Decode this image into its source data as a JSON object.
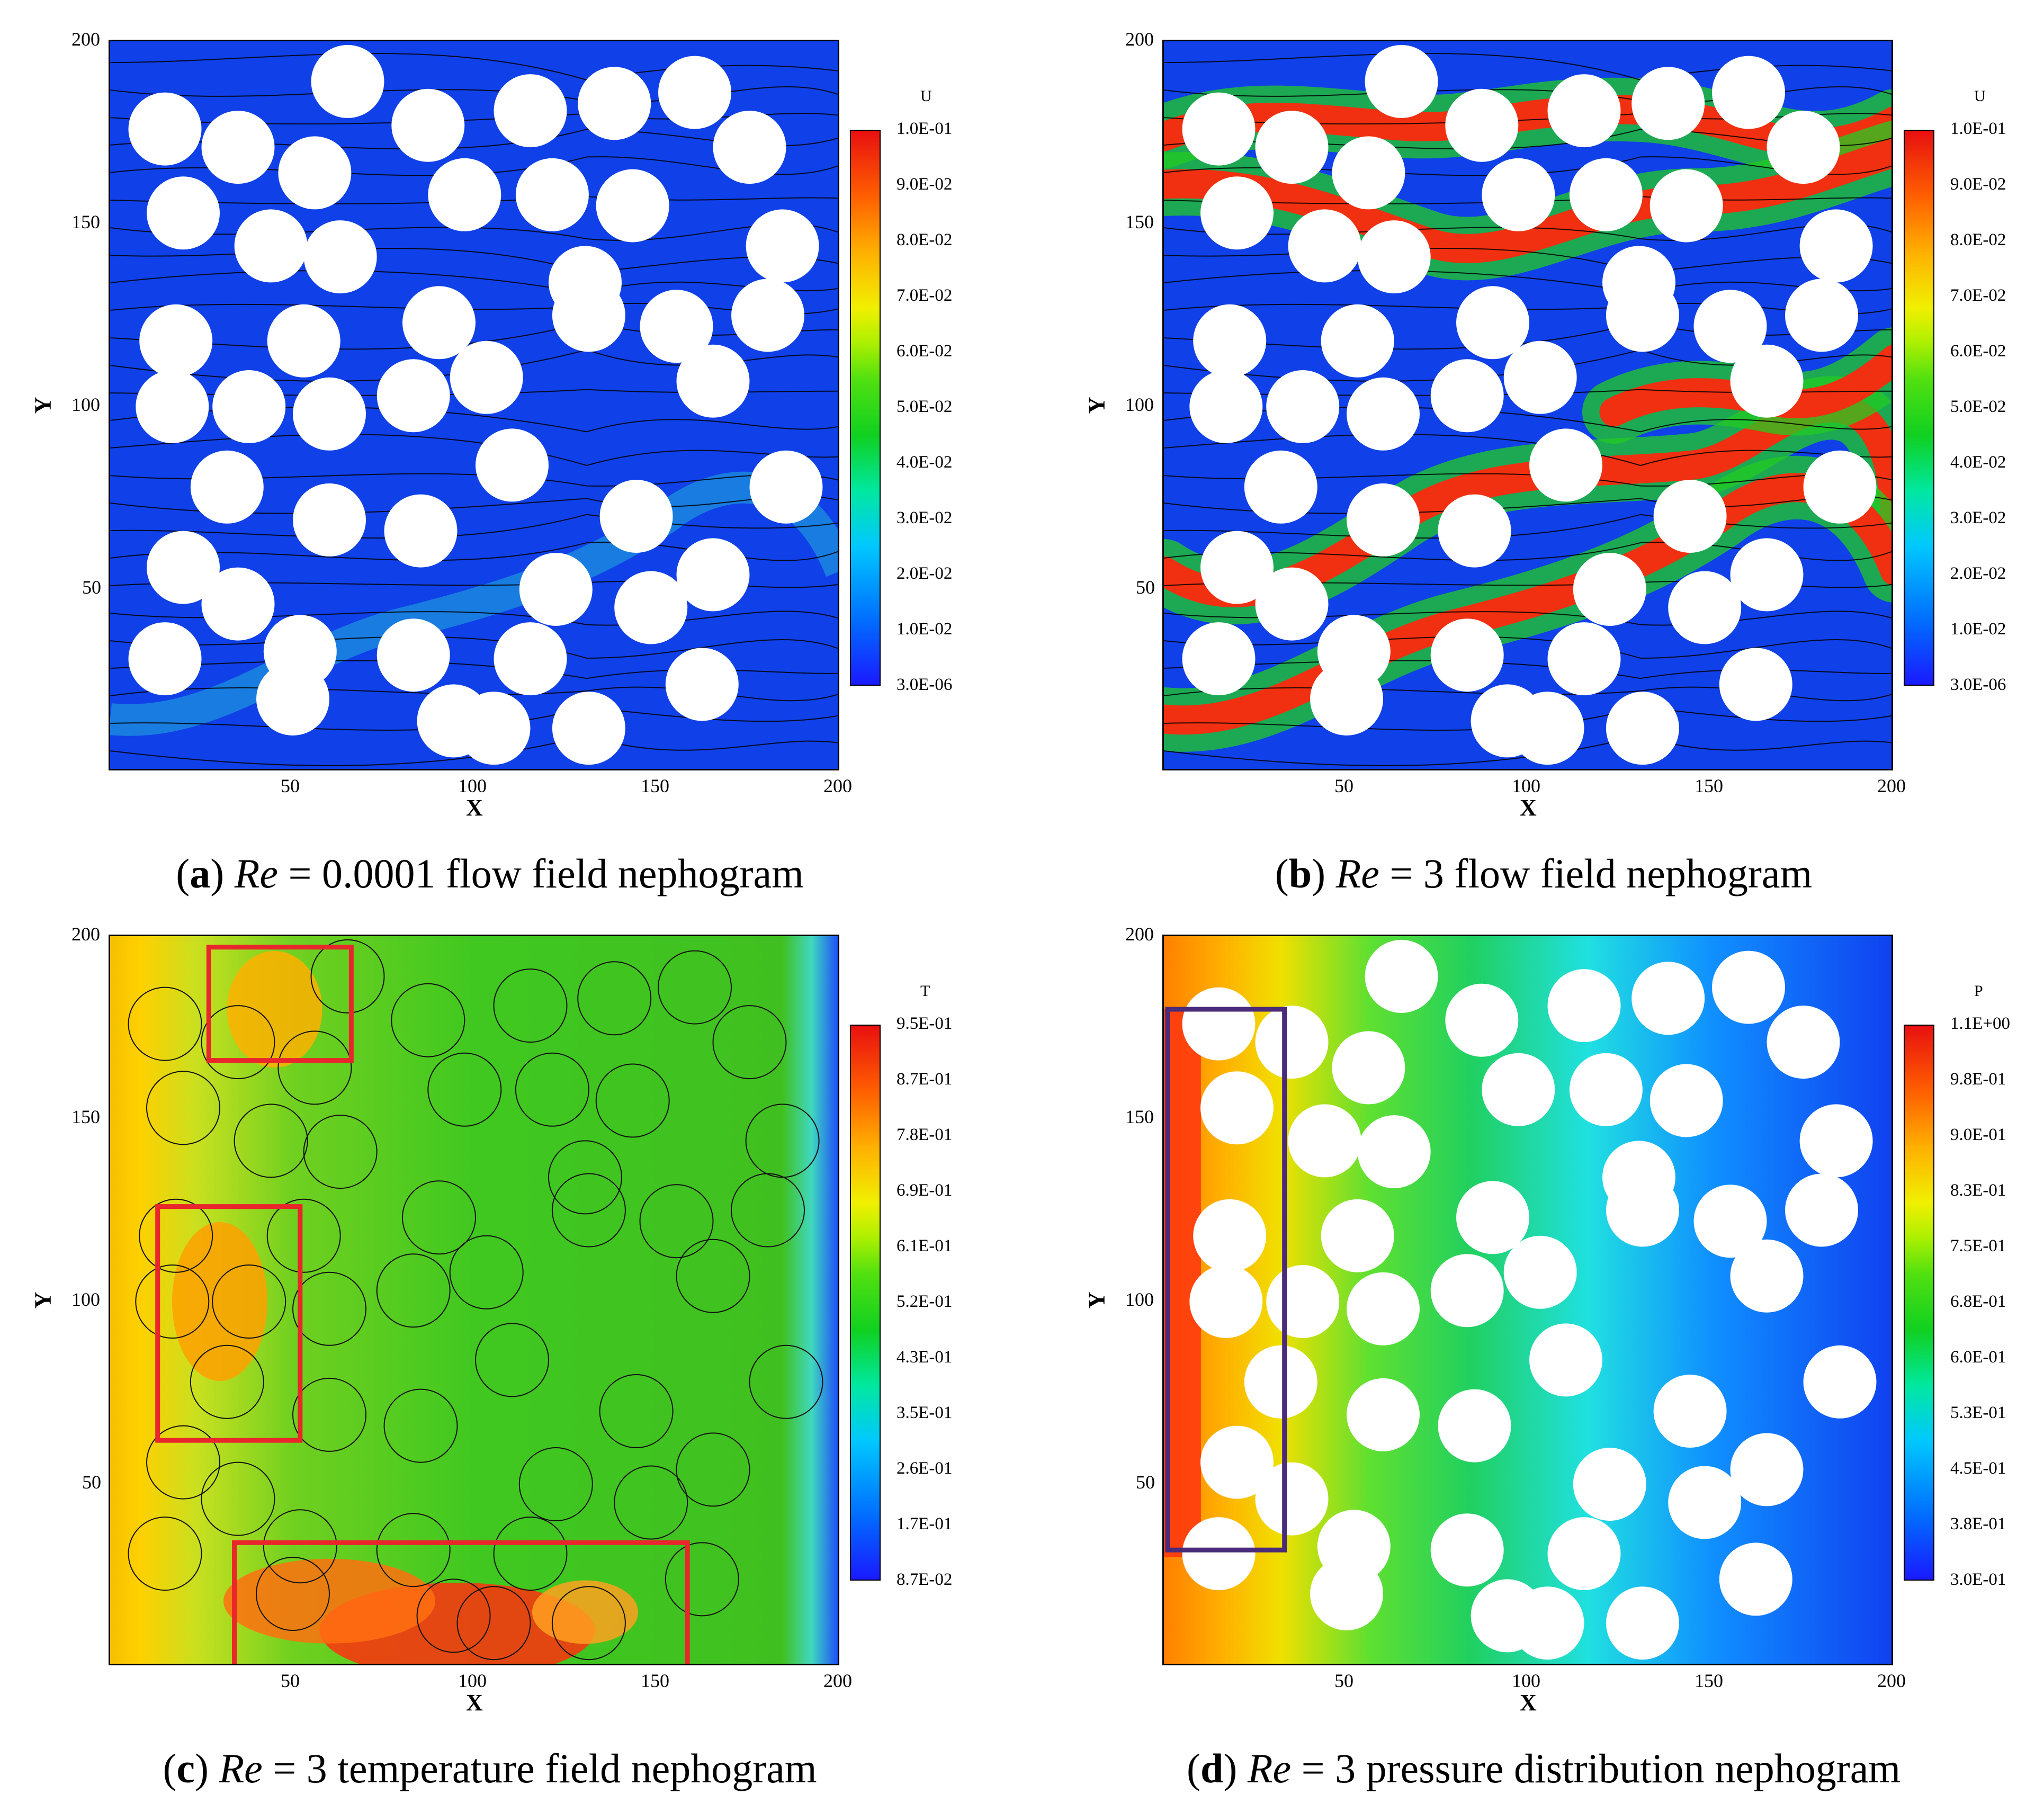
{
  "chart_data": [
    {
      "id": "a",
      "type": "heatmap",
      "field": "flow",
      "caption": {
        "letter": "a",
        "re_label": "Re",
        "re_value": "= 0.0001",
        "text": "flow field nephogram"
      },
      "xlabel": "X",
      "ylabel": "Y",
      "xlim": [
        0,
        200
      ],
      "ylim": [
        0,
        200
      ],
      "xticks": [
        50,
        100,
        150,
        200
      ],
      "yticks": [
        50,
        100,
        150,
        200
      ],
      "colorbar": {
        "title": "U",
        "labels": [
          "1.0E-01",
          "9.0E-02",
          "8.0E-02",
          "7.0E-02",
          "6.0E-02",
          "5.0E-02",
          "4.0E-02",
          "3.0E-02",
          "2.0E-02",
          "1.0E-02",
          "3.0E-06"
        ]
      },
      "obstacles": "white",
      "streamlines": true
    },
    {
      "id": "b",
      "type": "heatmap",
      "field": "flow",
      "caption": {
        "letter": "b",
        "re_label": "Re",
        "re_value": "= 3",
        "text": "flow field nephogram"
      },
      "xlabel": "X",
      "ylabel": "Y",
      "xlim": [
        0,
        200
      ],
      "ylim": [
        0,
        200
      ],
      "xticks": [
        50,
        100,
        150,
        200
      ],
      "yticks": [
        50,
        100,
        150,
        200
      ],
      "colorbar": {
        "title": "U",
        "labels": [
          "1.0E-01",
          "9.0E-02",
          "8.0E-02",
          "7.0E-02",
          "6.0E-02",
          "5.0E-02",
          "4.0E-02",
          "3.0E-02",
          "2.0E-02",
          "1.0E-02",
          "3.0E-06"
        ]
      },
      "obstacles": "white",
      "streamlines": true
    },
    {
      "id": "c",
      "type": "heatmap",
      "field": "temperature",
      "caption": {
        "letter": "c",
        "re_label": "Re",
        "re_value": "= 3",
        "text": "temperature field nephogram"
      },
      "xlabel": "X",
      "ylabel": "Y",
      "xlim": [
        0,
        200
      ],
      "ylim": [
        0,
        200
      ],
      "xticks": [
        50,
        100,
        150,
        200
      ],
      "yticks": [
        50,
        100,
        150,
        200
      ],
      "colorbar": {
        "title": "T",
        "labels": [
          "9.5E-01",
          "8.7E-01",
          "7.8E-01",
          "6.9E-01",
          "6.1E-01",
          "5.2E-01",
          "4.3E-01",
          "3.5E-01",
          "2.6E-01",
          "1.7E-01",
          "8.7E-02"
        ]
      },
      "obstacles": "outline",
      "highlight_boxes": [
        {
          "color": "#e8262b",
          "x": [
            27,
            66
          ],
          "y": [
            166,
            197
          ]
        },
        {
          "color": "#e8262b",
          "x": [
            13,
            52
          ],
          "y": [
            62,
            126
          ]
        },
        {
          "color": "#e8262b",
          "x": [
            34,
            158
          ],
          "y": [
            0,
            34
          ]
        }
      ]
    },
    {
      "id": "d",
      "type": "heatmap",
      "field": "pressure",
      "caption": {
        "letter": "d",
        "re_label": "Re",
        "re_value": "= 3",
        "text": "pressure distribution nephogram"
      },
      "xlabel": "X",
      "ylabel": "Y",
      "xlim": [
        0,
        200
      ],
      "ylim": [
        0,
        200
      ],
      "xticks": [
        50,
        100,
        150,
        200
      ],
      "yticks": [
        50,
        100,
        150,
        200
      ],
      "colorbar": {
        "title": "P",
        "labels": [
          "1.1E+00",
          "9.8E-01",
          "9.0E-01",
          "8.3E-01",
          "7.5E-01",
          "6.8E-01",
          "6.0E-01",
          "5.3E-01",
          "4.5E-01",
          "3.8E-01",
          "3.0E-01"
        ]
      },
      "obstacles": "white",
      "highlight_boxes": [
        {
          "color": "#4a2a7a",
          "x": [
            1,
            33
          ],
          "y": [
            32,
            180
          ]
        }
      ]
    }
  ],
  "obstacle_centers": [
    [
      15,
      176
    ],
    [
      35,
      171
    ],
    [
      65,
      189
    ],
    [
      87,
      177
    ],
    [
      115,
      181
    ],
    [
      138,
      183
    ],
    [
      160,
      186
    ],
    [
      175,
      171
    ],
    [
      56,
      164
    ],
    [
      20,
      153
    ],
    [
      44,
      144
    ],
    [
      63,
      141
    ],
    [
      97,
      158
    ],
    [
      121,
      158
    ],
    [
      143,
      155
    ],
    [
      184,
      144
    ],
    [
      130,
      134
    ],
    [
      18,
      118
    ],
    [
      53,
      118
    ],
    [
      90,
      123
    ],
    [
      155,
      122
    ],
    [
      180,
      125
    ],
    [
      17,
      100
    ],
    [
      38,
      100
    ],
    [
      60,
      98
    ],
    [
      83,
      103
    ],
    [
      103,
      108
    ],
    [
      131,
      125
    ],
    [
      165,
      107
    ],
    [
      32,
      78
    ],
    [
      110,
      84
    ],
    [
      144,
      70
    ],
    [
      185,
      78
    ],
    [
      20,
      56
    ],
    [
      60,
      69
    ],
    [
      85,
      66
    ],
    [
      165,
      54
    ],
    [
      35,
      46
    ],
    [
      122,
      50
    ],
    [
      148,
      45
    ],
    [
      15,
      31
    ],
    [
      52,
      33
    ],
    [
      83,
      32
    ],
    [
      115,
      31
    ],
    [
      162,
      24
    ],
    [
      50,
      20
    ],
    [
      94,
      14
    ],
    [
      105,
      12
    ],
    [
      131,
      12
    ]
  ],
  "obstacle_radius": 10
}
